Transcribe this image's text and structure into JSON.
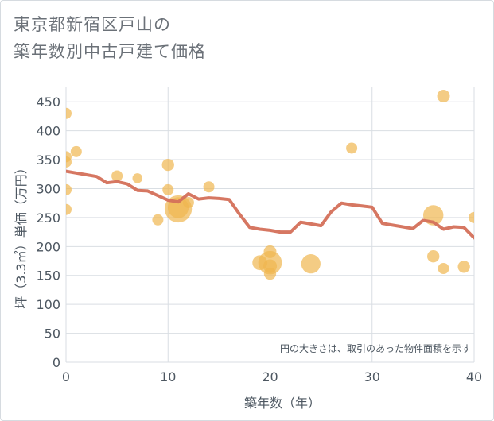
{
  "title_lines": [
    "東京都新宿区戸山の",
    "築年数別中古戸建て価格"
  ],
  "colors": {
    "line": "#d4705a",
    "bubble": "#f0b650",
    "grid": "#d9dee3",
    "text": "#4d5761"
  },
  "chart_data": {
    "type": "scatter",
    "xlabel": "築年数（年）",
    "ylabel": "坪（3.3㎡）単価（万円）",
    "xlim": [
      0,
      40
    ],
    "ylim": [
      0,
      475
    ],
    "xticks": [
      "0",
      "10",
      "20",
      "30",
      "40"
    ],
    "yticks": [
      "0",
      "50",
      "100",
      "150",
      "200",
      "250",
      "300",
      "350",
      "400",
      "450"
    ],
    "grid": true,
    "annotation": "円の大きさは、取引のあった物件面積を示す",
    "trend": {
      "x": [
        0,
        1,
        2,
        3,
        4,
        5,
        6,
        7,
        8,
        9,
        10,
        11,
        12,
        13,
        14,
        15,
        16,
        17,
        18,
        19,
        20,
        21,
        22,
        23,
        24,
        25,
        26,
        27,
        28,
        29,
        30,
        31,
        32,
        33,
        34,
        35,
        36,
        37,
        38,
        39,
        40
      ],
      "y": [
        330,
        327,
        324,
        321,
        310,
        312,
        308,
        297,
        296,
        288,
        280,
        277,
        291,
        282,
        284,
        283,
        281,
        256,
        233,
        230,
        228,
        225,
        225,
        242,
        239,
        236,
        260,
        275,
        272,
        270,
        268,
        240,
        237,
        234,
        231,
        245,
        242,
        230,
        234,
        233,
        215
      ]
    },
    "bubbles": [
      {
        "x": 0,
        "y": 430,
        "size": 1
      },
      {
        "x": 0,
        "y": 355,
        "size": 1
      },
      {
        "x": 0,
        "y": 346,
        "size": 1
      },
      {
        "x": 0,
        "y": 298,
        "size": 1
      },
      {
        "x": 0,
        "y": 264,
        "size": 1
      },
      {
        "x": 1,
        "y": 364,
        "size": 1
      },
      {
        "x": 5,
        "y": 322,
        "size": 1
      },
      {
        "x": 7,
        "y": 318,
        "size": 0.8
      },
      {
        "x": 9,
        "y": 246,
        "size": 1
      },
      {
        "x": 10,
        "y": 341,
        "size": 1.2
      },
      {
        "x": 10,
        "y": 298,
        "size": 1
      },
      {
        "x": 11,
        "y": 265,
        "size": 6
      },
      {
        "x": 11,
        "y": 267,
        "size": 3.5
      },
      {
        "x": 12,
        "y": 276,
        "size": 1
      },
      {
        "x": 14,
        "y": 303,
        "size": 1
      },
      {
        "x": 20,
        "y": 172,
        "size": 4.5
      },
      {
        "x": 20,
        "y": 166,
        "size": 1.5
      },
      {
        "x": 19,
        "y": 172,
        "size": 1.8
      },
      {
        "x": 20,
        "y": 191,
        "size": 1.3
      },
      {
        "x": 20,
        "y": 153,
        "size": 1.2
      },
      {
        "x": 24,
        "y": 170,
        "size": 3
      },
      {
        "x": 28,
        "y": 370,
        "size": 1
      },
      {
        "x": 36,
        "y": 254,
        "size": 3.3
      },
      {
        "x": 36,
        "y": 183,
        "size": 1.2
      },
      {
        "x": 37,
        "y": 460,
        "size": 1.3
      },
      {
        "x": 37,
        "y": 162,
        "size": 1
      },
      {
        "x": 39,
        "y": 165,
        "size": 1.2
      },
      {
        "x": 40,
        "y": 250,
        "size": 1
      }
    ]
  }
}
